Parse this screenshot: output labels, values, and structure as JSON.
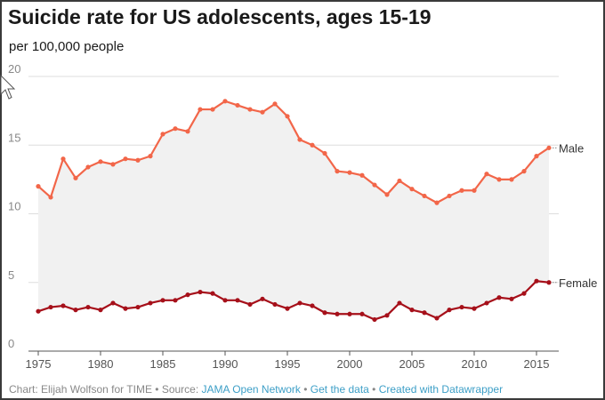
{
  "title": "Suicide rate for US adolescents, ages 15-19",
  "subtitle": "per 100,000 people",
  "footer": {
    "credit": "Chart: Elijah Wolfson for TIME",
    "sep": " • ",
    "source_prefix": "Source: ",
    "source_link": "JAMA Open Network",
    "get_data": "Get the data",
    "created": "Created with Datawrapper"
  },
  "chart_data": {
    "type": "line",
    "xlim": [
      1975,
      2016
    ],
    "ylim": [
      0,
      20
    ],
    "x_ticks": [
      1975,
      1980,
      1985,
      1990,
      1995,
      2000,
      2005,
      2010,
      2015
    ],
    "y_ticks": [
      0,
      5,
      10,
      15,
      20
    ],
    "grid": true,
    "shaded_between_series": true,
    "x": [
      1975,
      1976,
      1977,
      1978,
      1979,
      1980,
      1981,
      1982,
      1983,
      1984,
      1985,
      1986,
      1987,
      1988,
      1989,
      1990,
      1991,
      1992,
      1993,
      1994,
      1995,
      1996,
      1997,
      1998,
      1999,
      2000,
      2001,
      2002,
      2003,
      2004,
      2005,
      2006,
      2007,
      2008,
      2009,
      2010,
      2011,
      2012,
      2013,
      2014,
      2015,
      2016
    ],
    "series": [
      {
        "name": "Male",
        "color": "#f26649",
        "values": [
          12.0,
          11.2,
          14.0,
          12.6,
          13.4,
          13.8,
          13.6,
          14.0,
          13.9,
          14.2,
          15.8,
          16.2,
          16.0,
          17.6,
          17.6,
          18.2,
          17.9,
          17.6,
          17.4,
          18.0,
          17.1,
          15.4,
          15.0,
          14.4,
          13.1,
          13.0,
          12.8,
          12.1,
          11.4,
          12.4,
          11.8,
          11.3,
          10.8,
          11.3,
          11.7,
          11.7,
          12.9,
          12.5,
          12.5,
          13.1,
          14.2,
          14.8
        ]
      },
      {
        "name": "Female",
        "color": "#a6101a",
        "values": [
          2.9,
          3.2,
          3.3,
          3.0,
          3.2,
          3.0,
          3.5,
          3.1,
          3.2,
          3.5,
          3.7,
          3.7,
          4.1,
          4.3,
          4.2,
          3.7,
          3.7,
          3.4,
          3.8,
          3.4,
          3.1,
          3.5,
          3.3,
          2.8,
          2.7,
          2.7,
          2.7,
          2.3,
          2.6,
          3.5,
          3.0,
          2.8,
          2.4,
          3.0,
          3.2,
          3.1,
          3.5,
          3.9,
          3.8,
          4.2,
          5.1,
          5.0
        ]
      }
    ]
  }
}
